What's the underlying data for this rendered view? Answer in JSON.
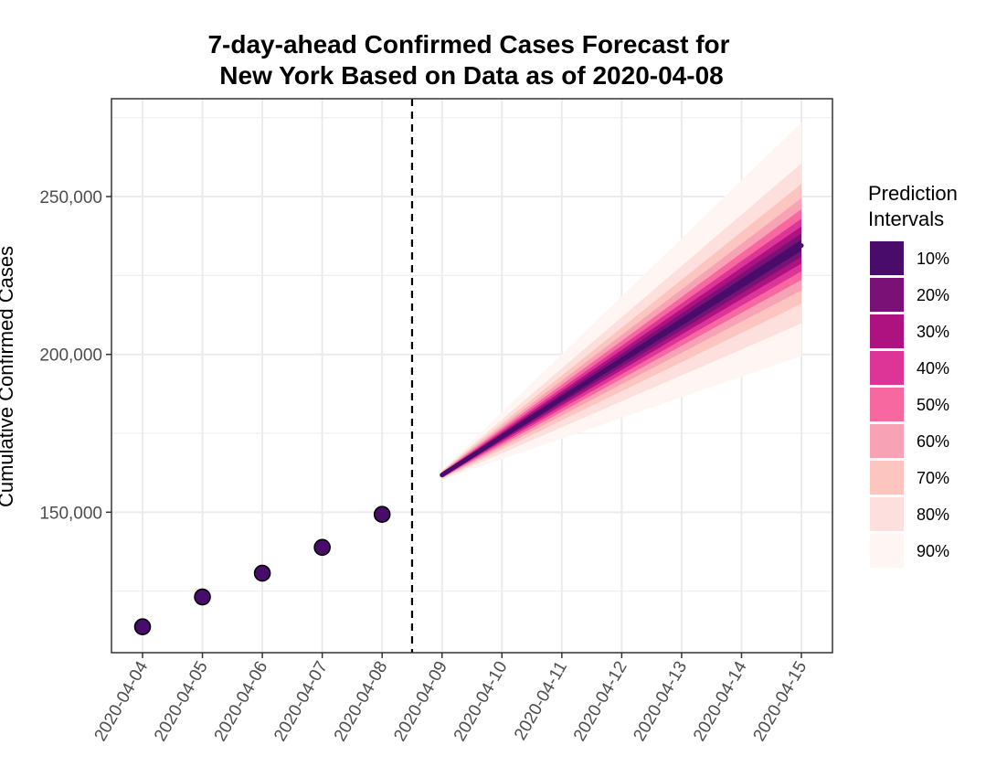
{
  "chart_data": {
    "type": "line",
    "title_lines": [
      "7-day-ahead Confirmed Cases Forecast for",
      "New York Based on Data as of 2020-04-08"
    ],
    "xlabel": "",
    "ylabel": "Cumulative Confirmed Cases",
    "x_categories": [
      "2020-04-04",
      "2020-04-05",
      "2020-04-06",
      "2020-04-07",
      "2020-04-08",
      "2020-04-09",
      "2020-04-10",
      "2020-04-11",
      "2020-04-12",
      "2020-04-13",
      "2020-04-14",
      "2020-04-15"
    ],
    "y_ticks": [
      150000,
      200000,
      250000
    ],
    "y_tick_labels": [
      "150,000",
      "200,000",
      "250,000"
    ],
    "ylim": [
      105500,
      281000
    ],
    "grid": true,
    "cutoff_date": "2020-04-08",
    "observed": {
      "x": [
        "2020-04-04",
        "2020-04-05",
        "2020-04-06",
        "2020-04-07",
        "2020-04-08"
      ],
      "y": [
        113704,
        123160,
        130689,
        138863,
        149316
      ]
    },
    "forecast": {
      "x_start": "2020-04-09",
      "x_end": "2020-04-15",
      "median_start": 161800,
      "median_end": 234500
    },
    "intervals": [
      {
        "label": "10%",
        "color": "#4a0c6b",
        "lower_end": 232800,
        "upper_end": 236300
      },
      {
        "label": "20%",
        "color": "#7a1177",
        "lower_end": 230900,
        "upper_end": 238300
      },
      {
        "label": "30%",
        "color": "#ae1280",
        "lower_end": 228800,
        "upper_end": 240500
      },
      {
        "label": "40%",
        "color": "#dd3497",
        "lower_end": 226300,
        "upper_end": 243000
      },
      {
        "label": "50%",
        "color": "#f768a1",
        "lower_end": 223600,
        "upper_end": 246000
      },
      {
        "label": "60%",
        "color": "#f8a2b6",
        "lower_end": 220300,
        "upper_end": 249500
      },
      {
        "label": "70%",
        "color": "#fcc5c0",
        "lower_end": 216000,
        "upper_end": 254000
      },
      {
        "label": "80%",
        "color": "#fde0dd",
        "lower_end": 209800,
        "upper_end": 260500
      },
      {
        "label": "90%",
        "color": "#fff5f2",
        "lower_end": 199500,
        "upper_end": 273500
      }
    ],
    "interval_start_halfwidth": 1500,
    "legend": {
      "title_lines": [
        "Prediction",
        "Intervals"
      ],
      "position": "right"
    },
    "colors": {
      "median_line": "#4a0c6b",
      "points": "#4a0c6b",
      "grid": "#ebebeb",
      "panel_border": "#333333",
      "cutoff_line": "#000000"
    }
  }
}
